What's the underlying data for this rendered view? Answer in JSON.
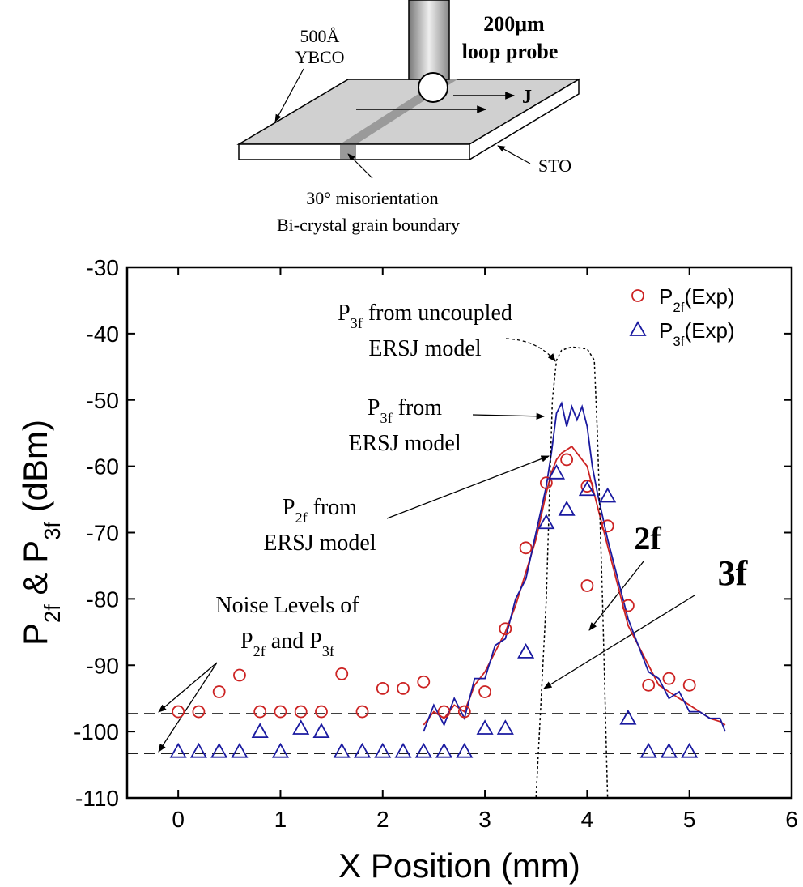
{
  "diagram": {
    "film_thickness": "500Å",
    "film": "YBCO",
    "probe_size": "200μm",
    "probe": "loop probe",
    "current": "J",
    "substrate": "STO",
    "boundary_line1": "30° misorientation",
    "boundary_line2": "Bi-crystal grain boundary"
  },
  "chart_data": {
    "type": "scatter",
    "xlabel": "X Position (mm)",
    "ylabel": [
      {
        "t": "P"
      },
      {
        "sub": "2f"
      },
      {
        "t": " & P"
      },
      {
        "sub": "3f"
      },
      {
        "t": " (dBm)"
      }
    ],
    "xlim": [
      -0.5,
      6
    ],
    "ylim": [
      -110,
      -30
    ],
    "xticks": [
      0,
      1,
      2,
      3,
      4,
      5,
      6
    ],
    "yticks": [
      -110,
      -100,
      -90,
      -80,
      -70,
      -60,
      -50,
      -40,
      -30
    ],
    "legend": "upper right",
    "series": [
      {
        "name": [
          {
            "t": "P"
          },
          {
            "sub": "2f"
          },
          {
            "t": "(Exp)"
          }
        ],
        "color": "#cc2222",
        "marker": "circle",
        "x": [
          0,
          0.2,
          0.4,
          0.6,
          0.8,
          1.0,
          1.2,
          1.4,
          1.6,
          1.8,
          2.0,
          2.2,
          2.4,
          2.6,
          2.8,
          3.0,
          3.2,
          3.4,
          3.6,
          3.8,
          4.0,
          4.0,
          4.2,
          4.4,
          4.6,
          4.8,
          5.0
        ],
        "values": [
          -97,
          -97,
          -94,
          -91.5,
          -97,
          -97,
          -97,
          -97,
          -91.3,
          -97,
          -93.5,
          -93.5,
          -92.5,
          -97,
          -97,
          -94,
          -84.5,
          -72.3,
          -62.5,
          -59,
          -63,
          -78,
          -69,
          -81,
          -93,
          -92,
          -93
        ]
      },
      {
        "name": [
          {
            "t": "P"
          },
          {
            "sub": "3f"
          },
          {
            "t": "(Exp)"
          }
        ],
        "color": "#1a1aa0",
        "marker": "triangle",
        "x": [
          0,
          0.2,
          0.4,
          0.6,
          0.8,
          1.0,
          1.2,
          1.4,
          1.6,
          1.8,
          2.0,
          2.2,
          2.4,
          2.6,
          2.8,
          3.0,
          3.2,
          3.4,
          3.6,
          3.7,
          3.8,
          4.0,
          4.2,
          4.4,
          4.6,
          4.8,
          5.0
        ],
        "values": [
          -103,
          -103,
          -103,
          -103,
          -100,
          -103,
          -99.5,
          -100,
          -103,
          -103,
          -103,
          -103,
          -103,
          -103,
          -103,
          -99.5,
          -99.5,
          -88,
          -68.5,
          -61,
          -66.5,
          -63.5,
          -64.5,
          -98,
          -103,
          -103,
          -103
        ]
      }
    ],
    "model_curves": [
      {
        "color": "#cc2222",
        "dash": "solid",
        "x": [
          2.4,
          2.5,
          2.6,
          2.7,
          2.8,
          2.9,
          3.0,
          3.1,
          3.2,
          3.3,
          3.4,
          3.5,
          3.6,
          3.65,
          3.7,
          3.75,
          3.8,
          3.85,
          3.9,
          3.95,
          4.0,
          4.05,
          4.1,
          4.2,
          4.3,
          4.4,
          4.5,
          4.6,
          4.7,
          4.8,
          4.9,
          5.0,
          5.1,
          5.2,
          5.3,
          5.35
        ],
        "values": [
          -99,
          -97,
          -98,
          -96,
          -97,
          -93,
          -91,
          -88,
          -85,
          -81,
          -76,
          -71,
          -64,
          -61,
          -59,
          -58,
          -57.5,
          -57,
          -58,
          -59,
          -60,
          -63,
          -66,
          -72,
          -78,
          -84,
          -87,
          -90,
          -93,
          -94,
          -95,
          -96,
          -97,
          -98,
          -98.5,
          -99
        ]
      },
      {
        "color": "#1a1aa0",
        "dash": "solid",
        "x": [
          2.4,
          2.5,
          2.6,
          2.7,
          2.8,
          2.9,
          3.0,
          3.1,
          3.2,
          3.3,
          3.4,
          3.5,
          3.6,
          3.65,
          3.7,
          3.75,
          3.8,
          3.85,
          3.9,
          3.95,
          4.0,
          4.05,
          4.1,
          4.2,
          4.3,
          4.4,
          4.5,
          4.6,
          4.7,
          4.8,
          4.9,
          5.0,
          5.1,
          5.2,
          5.3,
          5.35
        ],
        "values": [
          -100,
          -96,
          -99,
          -95,
          -98,
          -92,
          -92,
          -87,
          -86,
          -80,
          -77,
          -70,
          -63,
          -58,
          -52,
          -50.5,
          -54,
          -51,
          -53,
          -51,
          -54,
          -60,
          -64,
          -71,
          -77,
          -83,
          -87,
          -91,
          -92,
          -95,
          -94,
          -97,
          -97,
          -98,
          -98,
          -100
        ]
      },
      {
        "color": "#000000",
        "dash": "dotted",
        "x": [
          3.5,
          3.6,
          3.66,
          3.7,
          3.75,
          3.85,
          4.0,
          4.07,
          4.1,
          4.15,
          4.2
        ],
        "values": [
          -110,
          -80,
          -50,
          -44,
          -42.5,
          -42,
          -42.3,
          -44,
          -55,
          -80,
          -110
        ]
      }
    ],
    "noise_levels": [
      -97.3,
      -103.3
    ],
    "annotations": [
      {
        "lines": [
          [
            {
              "t": "P"
            },
            {
              "sub": "3f"
            },
            {
              "t": " from uncoupled"
            }
          ],
          [
            {
              "t": "ERSJ model"
            }
          ]
        ]
      },
      {
        "lines": [
          [
            {
              "t": "P"
            },
            {
              "sub": "3f"
            },
            {
              "t": " from"
            }
          ],
          [
            {
              "t": "ERSJ model"
            }
          ]
        ]
      },
      {
        "lines": [
          [
            {
              "t": "P"
            },
            {
              "sub": "2f"
            },
            {
              "t": " from"
            }
          ],
          [
            {
              "t": "ERSJ model"
            }
          ]
        ]
      },
      {
        "lines": [
          [
            {
              "t": "Noise Levels of"
            }
          ],
          [
            {
              "t": "P"
            },
            {
              "sub": "2f"
            },
            {
              "t": " and P"
            },
            {
              "sub": "3f"
            }
          ]
        ]
      },
      {
        "lines": [
          [
            {
              "t": "2f"
            }
          ]
        ]
      },
      {
        "lines": [
          [
            {
              "t": "3f"
            }
          ]
        ]
      }
    ]
  }
}
